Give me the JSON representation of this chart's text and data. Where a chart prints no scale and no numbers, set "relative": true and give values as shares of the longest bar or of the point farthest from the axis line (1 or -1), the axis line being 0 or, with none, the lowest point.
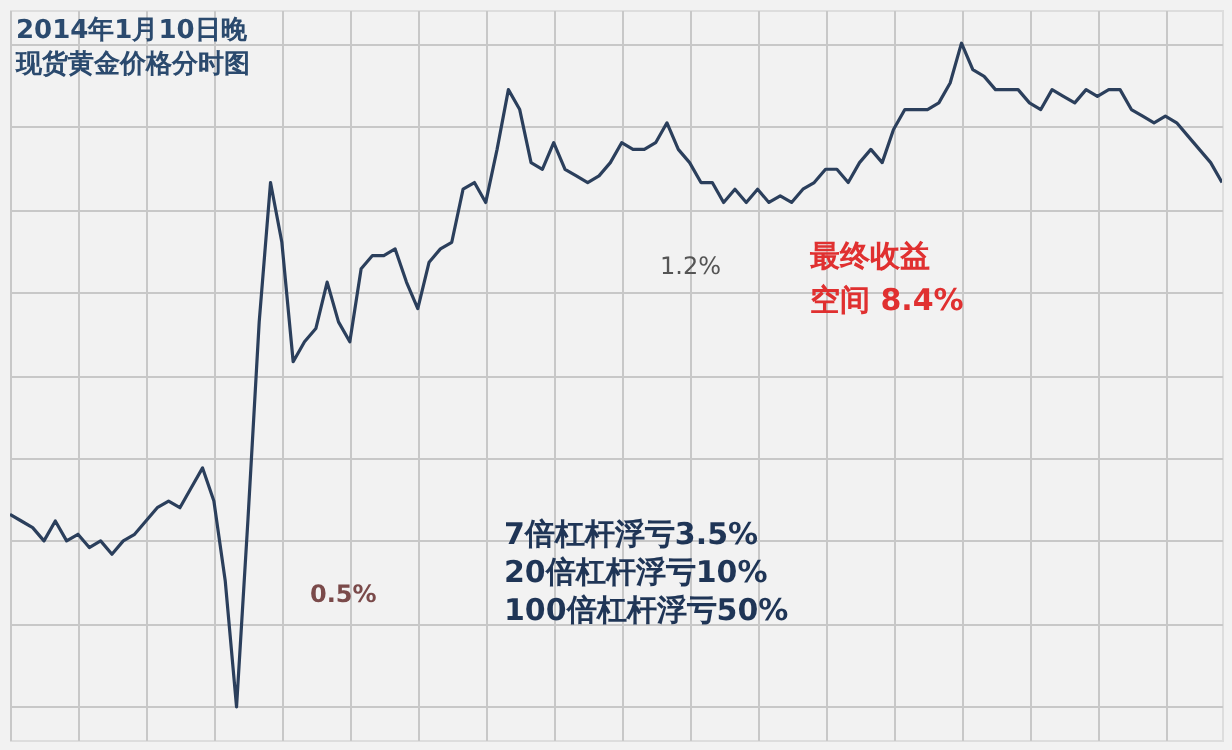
{
  "chart_data": {
    "type": "line",
    "title": "2014年1月10日晚",
    "subtitle": "现货黄金价格分时图",
    "relative": true,
    "grid": true,
    "tick_labels": false,
    "categories": [
      null,
      null,
      null,
      null,
      null,
      null,
      null,
      null,
      null,
      null,
      null,
      null,
      null,
      null,
      null,
      null,
      null,
      null,
      null,
      null,
      null,
      null,
      null,
      null,
      null,
      null,
      null,
      null,
      null,
      null,
      null,
      null,
      null,
      null,
      null,
      null,
      null,
      null,
      null,
      null,
      null,
      null,
      null,
      null,
      null,
      null,
      null,
      null,
      null,
      null,
      null,
      null,
      null,
      null,
      null,
      null,
      null,
      null,
      null,
      null,
      null,
      null,
      null,
      null,
      null,
      null,
      null,
      null,
      null,
      null,
      null,
      null,
      null,
      null,
      null,
      null,
      null,
      null,
      null,
      null,
      null,
      null,
      null,
      null,
      null,
      null,
      null,
      null,
      null,
      null,
      null,
      null,
      null,
      null,
      null,
      null,
      null,
      null,
      null,
      null,
      null,
      null,
      null,
      null,
      null,
      null,
      null,
      null
    ],
    "series": [
      {
        "color": "#2b3f5c",
        "values": [
          0.29,
          0.28,
          0.27,
          0.25,
          0.28,
          0.25,
          0.26,
          0.24,
          0.25,
          0.23,
          0.25,
          0.26,
          0.28,
          0.3,
          0.31,
          0.3,
          0.33,
          0.36,
          0.31,
          0.19,
          0,
          0.28,
          0.58,
          0.79,
          0.7,
          0.52,
          0.55,
          0.57,
          0.64,
          0.58,
          0.55,
          0.66,
          0.68,
          0.68,
          0.69,
          0.64,
          0.6,
          0.67,
          0.69,
          0.7,
          0.78,
          0.79,
          0.76,
          0.84,
          0.93,
          0.9,
          0.82,
          0.81,
          0.85,
          0.81,
          0.8,
          0.79,
          0.8,
          0.82,
          0.85,
          0.84,
          0.84,
          0.85,
          0.88,
          0.84,
          0.82,
          0.79,
          0.79,
          0.76,
          0.78,
          0.76,
          0.78,
          0.76,
          0.77,
          0.76,
          0.78,
          0.79,
          0.81,
          0.81,
          0.79,
          0.82,
          0.84,
          0.82,
          0.87,
          0.9,
          0.9,
          0.9,
          0.91,
          0.94,
          1,
          0.96,
          0.95,
          0.93,
          0.93,
          0.93,
          0.91,
          0.9,
          0.93,
          0.92,
          0.91,
          0.93,
          0.92,
          0.93,
          0.93,
          0.9,
          0.89,
          0.88,
          0.89,
          0.88,
          0.86,
          0.84,
          0.82,
          0.79
        ]
      }
    ],
    "annotations": [
      "0.5%",
      "1.2%",
      "最终收益",
      "空间 8.4%",
      "7倍杠杆浮亏3.5%",
      "20倍杠杆浮亏10%",
      "100倍杠杆浮亏50%"
    ]
  }
}
